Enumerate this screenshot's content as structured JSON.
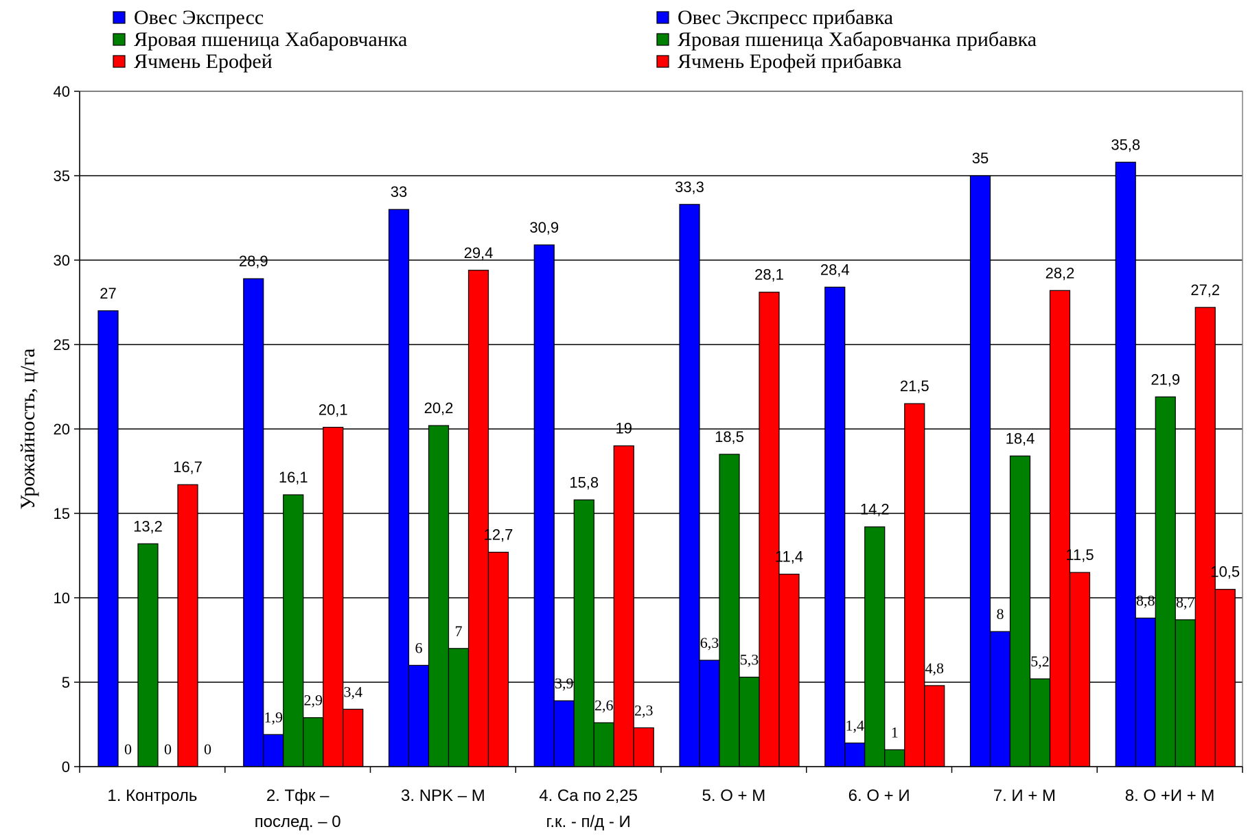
{
  "chart_data": {
    "type": "bar",
    "ylabel": "Урожайность, ц/га",
    "xlabel": "",
    "ylim": [
      0,
      40
    ],
    "yticks": [
      0,
      5,
      10,
      15,
      20,
      25,
      30,
      35,
      40
    ],
    "grid": true,
    "legend_position": "top",
    "categories": [
      [
        "1. Контроль"
      ],
      [
        "2. Тфк –",
        "послед. – 0"
      ],
      [
        "3. NPK – M"
      ],
      [
        "4. Ca  по 2,25",
        "г.к. - п/д - И"
      ],
      [
        "5. О + М"
      ],
      [
        "6. О + И"
      ],
      [
        "7. И + М"
      ],
      [
        "8. О +И + М"
      ]
    ],
    "series": [
      {
        "name": "Овес Экспресс",
        "color": "#0000FF",
        "values": [
          27,
          28.9,
          33,
          30.9,
          33.3,
          28.4,
          35,
          35.8
        ],
        "labels": [
          "27",
          "28,9",
          "33",
          "30,9",
          "33,3",
          "28,4",
          "35",
          "35,8"
        ]
      },
      {
        "name": "Овес Экспресс прибавка",
        "color": "#0000FF",
        "values": [
          0,
          1.9,
          6,
          3.9,
          6.3,
          1.4,
          8,
          8.8
        ],
        "labels": [
          "0",
          "1,9",
          "6",
          "3,9",
          "6,3",
          "1,4",
          "8",
          "8,8"
        ]
      },
      {
        "name": "Яровая пшеница Хабаровчанка",
        "color": "#008000",
        "values": [
          13.2,
          16.1,
          20.2,
          15.8,
          18.5,
          14.2,
          18.4,
          21.9
        ],
        "labels": [
          "13,2",
          "16,1",
          "20,2",
          "15,8",
          "18,5",
          "14,2",
          "18,4",
          "21,9"
        ]
      },
      {
        "name": "Яровая пшеница Хабаровчанка прибавка",
        "color": "#008000",
        "values": [
          0,
          2.9,
          7,
          2.6,
          5.3,
          1,
          5.2,
          8.7
        ],
        "labels": [
          "0",
          "2,9",
          "7",
          "2,6",
          "5,3",
          "1",
          "5,2",
          "8,7"
        ]
      },
      {
        "name": "Ячмень Ерофей",
        "color": "#FF0000",
        "values": [
          16.7,
          20.1,
          29.4,
          19,
          28.1,
          21.5,
          28.2,
          27.2
        ],
        "labels": [
          "16,7",
          "20,1",
          "29,4",
          "19",
          "28,1",
          "21,5",
          "28,2",
          "27,2"
        ]
      },
      {
        "name": "Ячмень Ерофей прибавка",
        "color": "#FF0000",
        "values": [
          0,
          3.4,
          12.7,
          2.3,
          11.4,
          4.8,
          11.5,
          10.5
        ],
        "labels": [
          "0",
          "3,4",
          "12,7",
          "2,3",
          "11,4",
          "4,8",
          "11,5",
          "10,5"
        ]
      }
    ]
  }
}
